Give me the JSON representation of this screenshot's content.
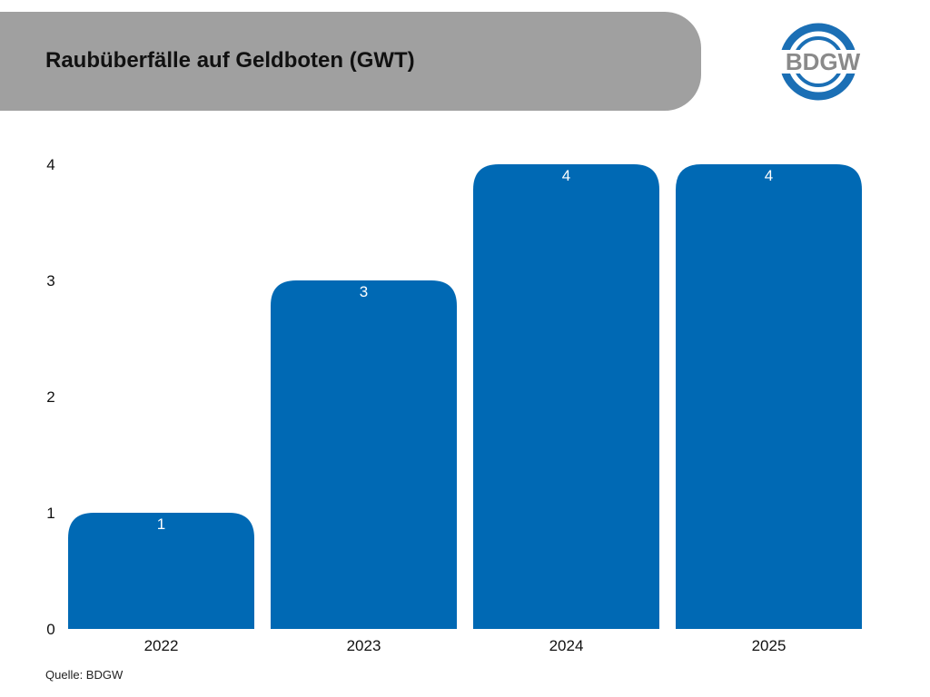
{
  "header": {
    "title": "Raubüberfälle auf Geldboten (GWT)"
  },
  "logo": {
    "text": "BDGW",
    "ring_color": "#1b6fb5",
    "text_color": "#8a8a8a"
  },
  "source": {
    "text": "Quelle: BDGW"
  },
  "colors": {
    "bar": "#0069b4",
    "header_bg": "#a0a0a0",
    "label_inside": "#ffffff",
    "axis_text": "#111111"
  },
  "chart_data": {
    "type": "bar",
    "title": "",
    "xlabel": "",
    "ylabel": "",
    "categories": [
      "2022",
      "2023",
      "2024",
      "2025"
    ],
    "values": [
      1,
      3,
      4,
      4
    ],
    "data_labels": [
      "1",
      "3",
      "4",
      "4"
    ],
    "ylim": [
      0,
      4
    ],
    "yticks": [
      "0",
      "1",
      "2",
      "3",
      "4"
    ],
    "grid": false,
    "legend": "none"
  }
}
